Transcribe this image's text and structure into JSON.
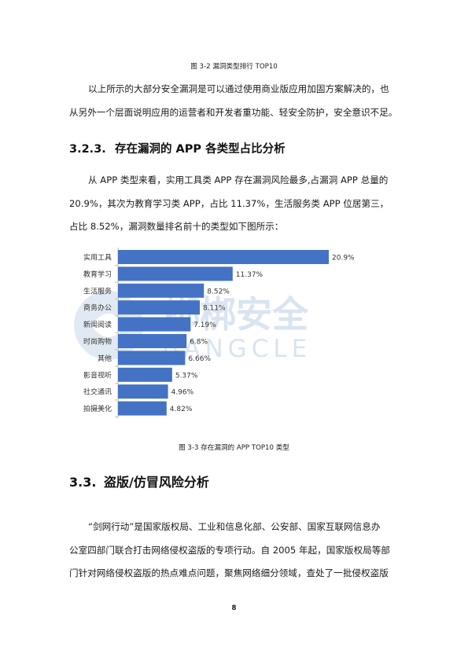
{
  "caption_top": "图 3-2 漏洞类型排行 TOP10",
  "para1": [
    "以上所示的大部分安全漏洞是可以通过使用商业版应用加固方案解决的，也",
    "从另外一个层面说明应用的运营者和开发者重功能、轻安全防护，安全意识不足。"
  ],
  "section_322": {
    "number": "3.2.3.",
    "title": "存在漏洞的 APP 各类型占比分析"
  },
  "para2": [
    "从 APP 类型来看，实用工具类 APP 存在漏洞风险最多,占漏洞 APP 总量的",
    "20.9%，其次为教育学习类 APP，占比 11.37%，生活服务类 APP 位居第三，",
    "占比 8.52%，漏洞数量排名前十的类型如下图所示："
  ],
  "chart_data": {
    "type": "bar",
    "orientation": "horizontal",
    "categories": [
      "实用工具",
      "教育学习",
      "生活服务",
      "商务办公",
      "新闻阅读",
      "时尚购物",
      "其他",
      "影音视听",
      "社交通讯",
      "拍摄美化"
    ],
    "values": [
      20.9,
      11.37,
      8.52,
      8.11,
      7.19,
      6.8,
      6.66,
      5.37,
      4.96,
      4.82
    ],
    "value_labels": [
      "20.9%",
      "11.37%",
      "8.52%",
      "8.11%",
      "7.19%",
      "6.8%",
      "6.66%",
      "5.37%",
      "4.96%",
      "4.82%"
    ],
    "bar_color": "#4472c4",
    "xlim": [
      0,
      20.9
    ],
    "grid": false,
    "legend": "none"
  },
  "watermark": {
    "text_cn": "梆梆安全",
    "text_en": "BANGCLE",
    "color": "#c9d9ea"
  },
  "caption_bottom": "图 3-3 存在漏洞的 APP TOP10 类型",
  "section_33": {
    "number": "3.3.",
    "title": "盗版/仿冒风险分析"
  },
  "para3": [
    "“剑网行动”是国家版权局、工业和信息化部、公安部、国家互联网信息办",
    "公室四部门联合打击网络侵权盗版的专项行动。自 2005 年起，国家版权局等部",
    "门针对网络侵权盗版的热点难点问题，聚焦网络细分领域，查处了一批侵权盗版"
  ],
  "page_number": "8"
}
